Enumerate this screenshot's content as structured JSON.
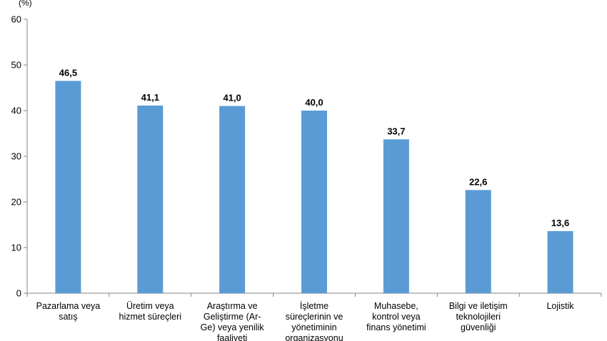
{
  "chart_data": {
    "type": "bar",
    "title": "",
    "xlabel": "",
    "ylabel": "(%)",
    "ylim": [
      0,
      60
    ],
    "yticks": [
      0,
      10,
      20,
      30,
      40,
      50,
      60
    ],
    "grid": false,
    "bar_color": "#5B9BD5",
    "categories": [
      [
        "Pazarlama veya",
        "satış"
      ],
      [
        "Üretim veya",
        "hizmet süreçleri"
      ],
      [
        "Araştırma ve",
        "Geliştirme (Ar-",
        "Ge) veya yenilik",
        "faaliyeti"
      ],
      [
        "İşletme",
        "süreçlerinin ve",
        "yönetiminin",
        "organizasyonu"
      ],
      [
        "Muhasebe,",
        "kontrol veya",
        "finans yönetimi"
      ],
      [
        "Bilgi ve iletişim",
        "teknolojileri",
        "güvenliği"
      ],
      [
        "Lojistik"
      ]
    ],
    "values": [
      46.5,
      41.1,
      41.0,
      40.0,
      33.7,
      22.6,
      13.6
    ],
    "value_labels": [
      "46,5",
      "41,1",
      "41,0",
      "40,0",
      "33,7",
      "22,6",
      "13,6"
    ]
  }
}
